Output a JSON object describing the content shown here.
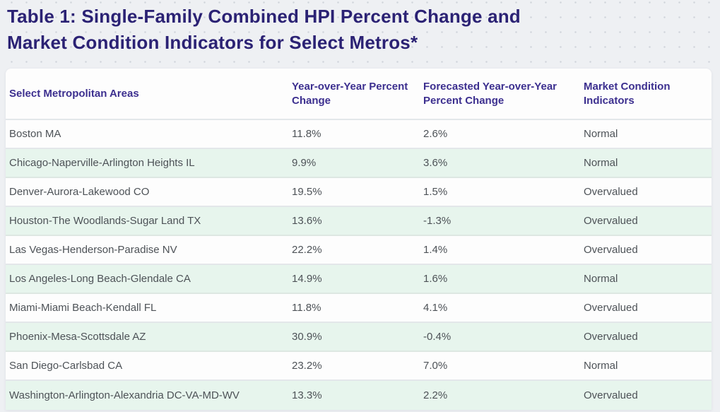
{
  "title": {
    "line1": "Table 1: Single-Family Combined HPI Percent Change and",
    "line2": "Market Condition Indicators for Select Metros*",
    "full": "Table 1: Single-Family Combined HPI Percent Change and Market Condition Indicators for Select Metros*"
  },
  "table": {
    "columns": [
      "Select Metropolitan Areas",
      "Year-over-Year Percent Change",
      "Forecasted Year-over-Year Percent Change",
      "Market Condition Indicators"
    ],
    "rows": [
      [
        "Boston MA",
        "11.8%",
        "2.6%",
        "Normal"
      ],
      [
        "Chicago-Naperville-Arlington Heights IL",
        "9.9%",
        "3.6%",
        "Normal"
      ],
      [
        "Denver-Aurora-Lakewood CO",
        "19.5%",
        "1.5%",
        "Overvalued"
      ],
      [
        "Houston-The Woodlands-Sugar Land TX",
        "13.6%",
        "-1.3%",
        "Overvalued"
      ],
      [
        "Las Vegas-Henderson-Paradise NV",
        "22.2%",
        "1.4%",
        "Overvalued"
      ],
      [
        "Los Angeles-Long Beach-Glendale CA",
        "14.9%",
        "1.6%",
        "Normal"
      ],
      [
        "Miami-Miami Beach-Kendall FL",
        "11.8%",
        "4.1%",
        "Overvalued"
      ],
      [
        "Phoenix-Mesa-Scottsdale AZ",
        "30.9%",
        "-0.4%",
        "Overvalued"
      ],
      [
        "San Diego-Carlsbad CA",
        "23.2%",
        "7.0%",
        "Normal"
      ],
      [
        "Washington-Arlington-Alexandria DC-VA-MD-WV",
        "13.3%",
        "2.2%",
        "Overvalued"
      ]
    ]
  },
  "colors": {
    "page_background": "#eef0f3",
    "dot_pattern": "#d0d4da",
    "title_text": "#2b2274",
    "header_text": "#3c2f8f",
    "body_text": "#4d5257",
    "row_white": "#fdfdfd",
    "row_mint": "#e7f5ed",
    "divider": "#e3e7ea"
  }
}
